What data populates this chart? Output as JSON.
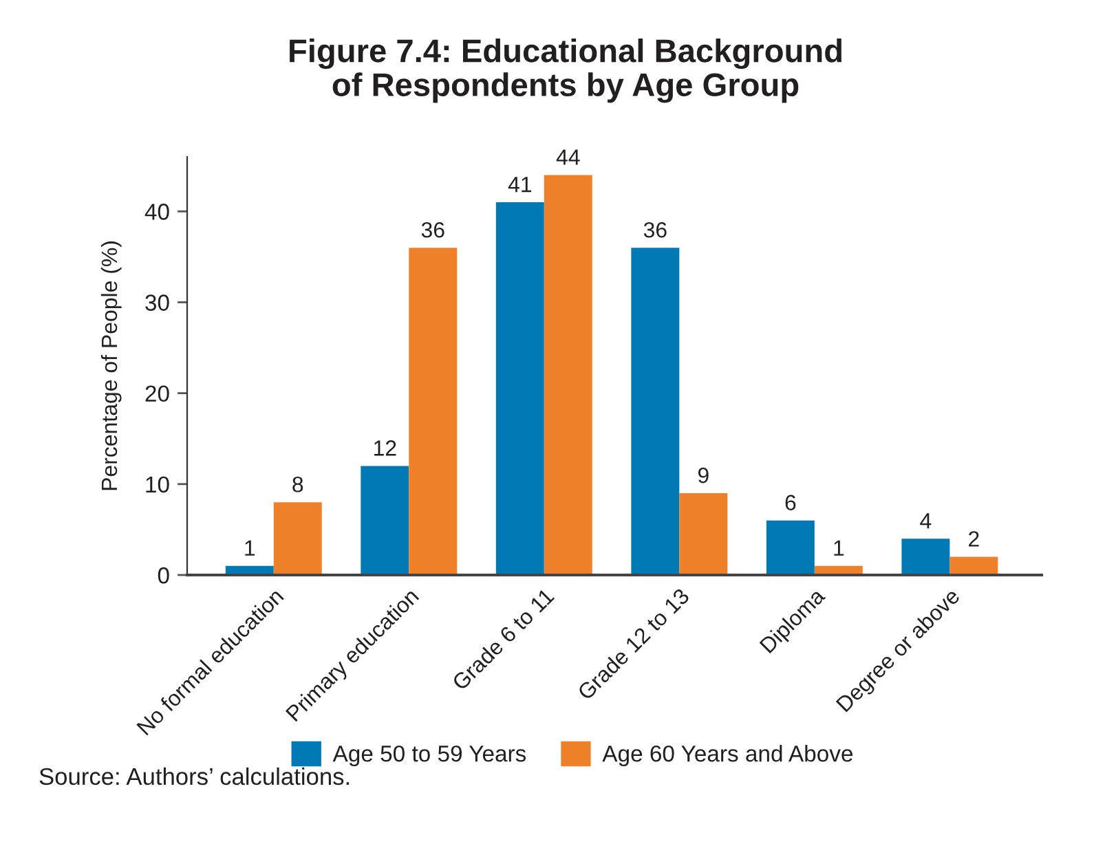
{
  "chart_data": {
    "type": "bar",
    "title": "Figure 7.4: Educational Background\nof Respondents by Age Group",
    "ylabel": "Percentage of People (%)",
    "categories": [
      "No formal education",
      "Primary education",
      "Grade 6 to 11",
      "Grade 12 to 13",
      "Diploma",
      "Degree or above"
    ],
    "series": [
      {
        "name": "Age 50 to 59 Years",
        "color": "#0079b5",
        "values": [
          1,
          12,
          41,
          36,
          6,
          4
        ]
      },
      {
        "name": "Age 60 Years and Above",
        "color": "#f0812b",
        "values": [
          8,
          36,
          44,
          9,
          1,
          2
        ]
      }
    ],
    "ylim": [
      0,
      46
    ],
    "yticks": [
      0,
      10,
      20,
      30,
      40
    ],
    "data_labels": true,
    "legend": "bottom",
    "grid": false,
    "annotations": [
      "Source: Authors’ calculations."
    ]
  }
}
